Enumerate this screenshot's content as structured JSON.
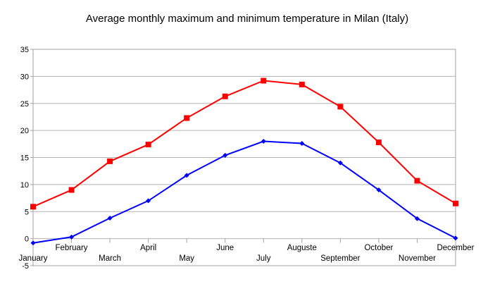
{
  "chart_data": {
    "type": "line",
    "title": "Average monthly maximum and minimum temperature in Milan (Italy)",
    "xlabel": "",
    "ylabel": "",
    "ylim": [
      -5,
      35
    ],
    "yticks": [
      -5,
      0,
      5,
      10,
      15,
      20,
      25,
      30,
      35
    ],
    "grid": true,
    "legend": "none",
    "categories": [
      "January",
      "February",
      "March",
      "April",
      "May",
      "June",
      "July",
      "Auguste",
      "September",
      "October",
      "November",
      "December"
    ],
    "series": [
      {
        "color": "#ff0000",
        "marker": "square",
        "values": [
          5.9,
          9.0,
          14.3,
          17.4,
          22.3,
          26.3,
          29.2,
          28.5,
          24.4,
          17.8,
          10.7,
          6.5
        ]
      },
      {
        "color": "#0000ff",
        "marker": "diamond",
        "values": [
          -0.8,
          0.3,
          3.8,
          7.0,
          11.7,
          15.4,
          18.0,
          17.6,
          14.0,
          9.0,
          3.7,
          0.1
        ]
      }
    ]
  }
}
